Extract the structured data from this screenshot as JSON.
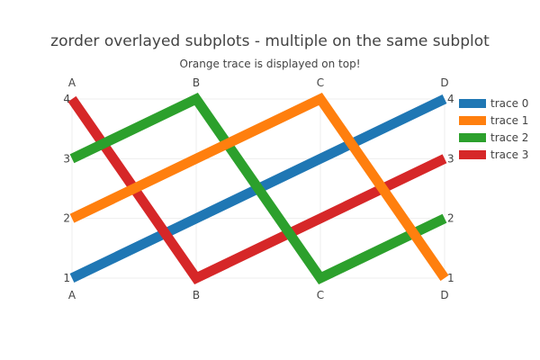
{
  "chart_data": {
    "type": "line",
    "title": "zorder overlayed subplots - multiple on the same subplot",
    "subtitle": "Orange trace is displayed on top!",
    "categories": [
      "A",
      "B",
      "C",
      "D"
    ],
    "ylim": [
      1,
      4
    ],
    "yticks": [
      1,
      2,
      3,
      4
    ],
    "grid": true,
    "legend_position": "right",
    "series": [
      {
        "name": "trace 0",
        "color": "#1f77b4",
        "values": [
          1,
          2,
          3,
          4
        ]
      },
      {
        "name": "trace 1",
        "color": "#ff7f0e",
        "values": [
          2,
          3,
          4,
          1
        ]
      },
      {
        "name": "trace 2",
        "color": "#2ca02c",
        "values": [
          3,
          4,
          1,
          2
        ]
      },
      {
        "name": "trace 3",
        "color": "#d62728",
        "values": [
          4,
          1,
          2,
          3
        ]
      }
    ],
    "draw_order": [
      0,
      3,
      2,
      1
    ]
  }
}
